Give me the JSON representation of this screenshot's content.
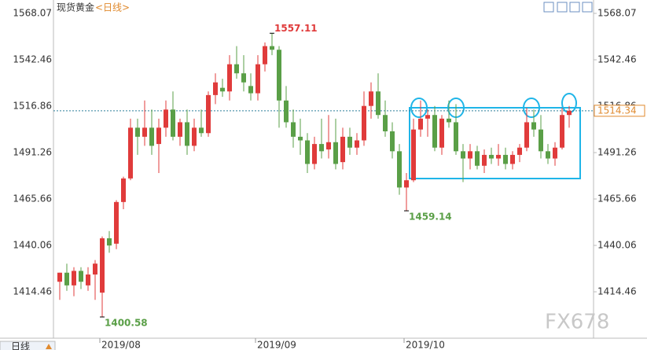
{
  "chart_data": {
    "type": "candlestick",
    "title": "现货黄金",
    "subtitle": "<日线>",
    "period_button": "日线",
    "watermark": "FX678",
    "categories": [
      null,
      null,
      null,
      null,
      null,
      null,
      "2019/08",
      null,
      null,
      null,
      null,
      null,
      null,
      null,
      null,
      null,
      null,
      null,
      null,
      null,
      null,
      null,
      null,
      null,
      null,
      null,
      null,
      null,
      "2019/09",
      null,
      null,
      null,
      null,
      null,
      null,
      null,
      null,
      null,
      null,
      null,
      null,
      null,
      null,
      null,
      null,
      null,
      null,
      null,
      null,
      "2019/10",
      null,
      null,
      null,
      null,
      null,
      null,
      null,
      null,
      null,
      null,
      null,
      null,
      null,
      null,
      null,
      null,
      null,
      null,
      null,
      null,
      null,
      null,
      null
    ],
    "open": [
      1420,
      1425,
      1418,
      1426,
      1418,
      1424,
      1414,
      1444,
      1441,
      1464,
      1477,
      1505,
      1500,
      1505,
      1496,
      1505,
      1515,
      1500,
      1508,
      1495,
      1505,
      1502,
      1523,
      1527,
      1525,
      1540,
      1535,
      1528,
      1524,
      1540,
      1550,
      1548,
      1520,
      1508,
      1500,
      1498,
      1485,
      1496,
      1493,
      1497,
      1486,
      1500,
      1494,
      1498,
      1517,
      1525,
      1512,
      1503,
      1492,
      1472,
      1476,
      1504,
      1510,
      1512,
      1494,
      1510,
      1508,
      1492,
      1488,
      1492,
      1484,
      1490,
      1488,
      1490,
      1485,
      1490,
      1494,
      1508,
      1504,
      1492,
      1488,
      1494,
      1512
    ],
    "high": [
      1425,
      1430,
      1428,
      1428,
      1428,
      1432,
      1445,
      1448,
      1465,
      1478,
      1510,
      1510,
      1520,
      1515,
      1510,
      1520,
      1525,
      1510,
      1515,
      1510,
      1515,
      1525,
      1535,
      1532,
      1545,
      1550,
      1545,
      1535,
      1545,
      1552,
      1557.11,
      1550,
      1528,
      1515,
      1510,
      1502,
      1500,
      1510,
      1512,
      1510,
      1505,
      1505,
      1502,
      1525,
      1530,
      1535,
      1520,
      1508,
      1496,
      1480,
      1510,
      1520,
      1515,
      1517,
      1512,
      1520,
      1518,
      1496,
      1496,
      1495,
      1493,
      1494,
      1496,
      1494,
      1492,
      1496,
      1516,
      1515,
      1512,
      1496,
      1497,
      1516,
      1517
    ],
    "low": [
      1410,
      1415,
      1412,
      1416,
      1415,
      1410,
      1400.58,
      1436,
      1438,
      1460,
      1476,
      1490,
      1495,
      1490,
      1480,
      1500,
      1498,
      1495,
      1490,
      1492,
      1500,
      1500,
      1518,
      1522,
      1520,
      1532,
      1525,
      1520,
      1520,
      1536,
      1545,
      1505,
      1505,
      1494,
      1490,
      1480,
      1482,
      1488,
      1488,
      1482,
      1482,
      1490,
      1490,
      1495,
      1510,
      1510,
      1500,
      1488,
      1468,
      1459.14,
      1475,
      1500,
      1500,
      1492,
      1490,
      1505,
      1490,
      1475,
      1482,
      1482,
      1480,
      1485,
      1484,
      1482,
      1482,
      1486,
      1492,
      1500,
      1488,
      1485,
      1484,
      1493,
      1505
    ],
    "close": [
      1425,
      1418,
      1426,
      1420,
      1424,
      1430,
      1444,
      1440,
      1464,
      1477,
      1505,
      1500,
      1505,
      1495,
      1505,
      1515,
      1500,
      1508,
      1495,
      1505,
      1502,
      1523,
      1530,
      1525,
      1540,
      1535,
      1530,
      1524,
      1540,
      1550,
      1548,
      1520,
      1508,
      1500,
      1498,
      1485,
      1496,
      1492,
      1497,
      1485,
      1500,
      1494,
      1498,
      1517,
      1525,
      1512,
      1503,
      1492,
      1472,
      1476,
      1504,
      1510,
      1512,
      1494,
      1510,
      1508,
      1492,
      1488,
      1492,
      1484,
      1490,
      1488,
      1490,
      1485,
      1490,
      1494,
      1508,
      1504,
      1492,
      1488,
      1494,
      1512,
      1514.34
    ],
    "up_color": "#e03b3b",
    "down_color": "#5a9f47",
    "annotations": [
      1557.11,
      1459.14,
      1400.58
    ],
    "last_price": 1514.34,
    "ylim": [
      1388.86,
      1575.45
    ],
    "yticks": [
      1414.46,
      1440.06,
      1465.66,
      1491.26,
      1516.86,
      1542.46,
      1568.07
    ]
  }
}
